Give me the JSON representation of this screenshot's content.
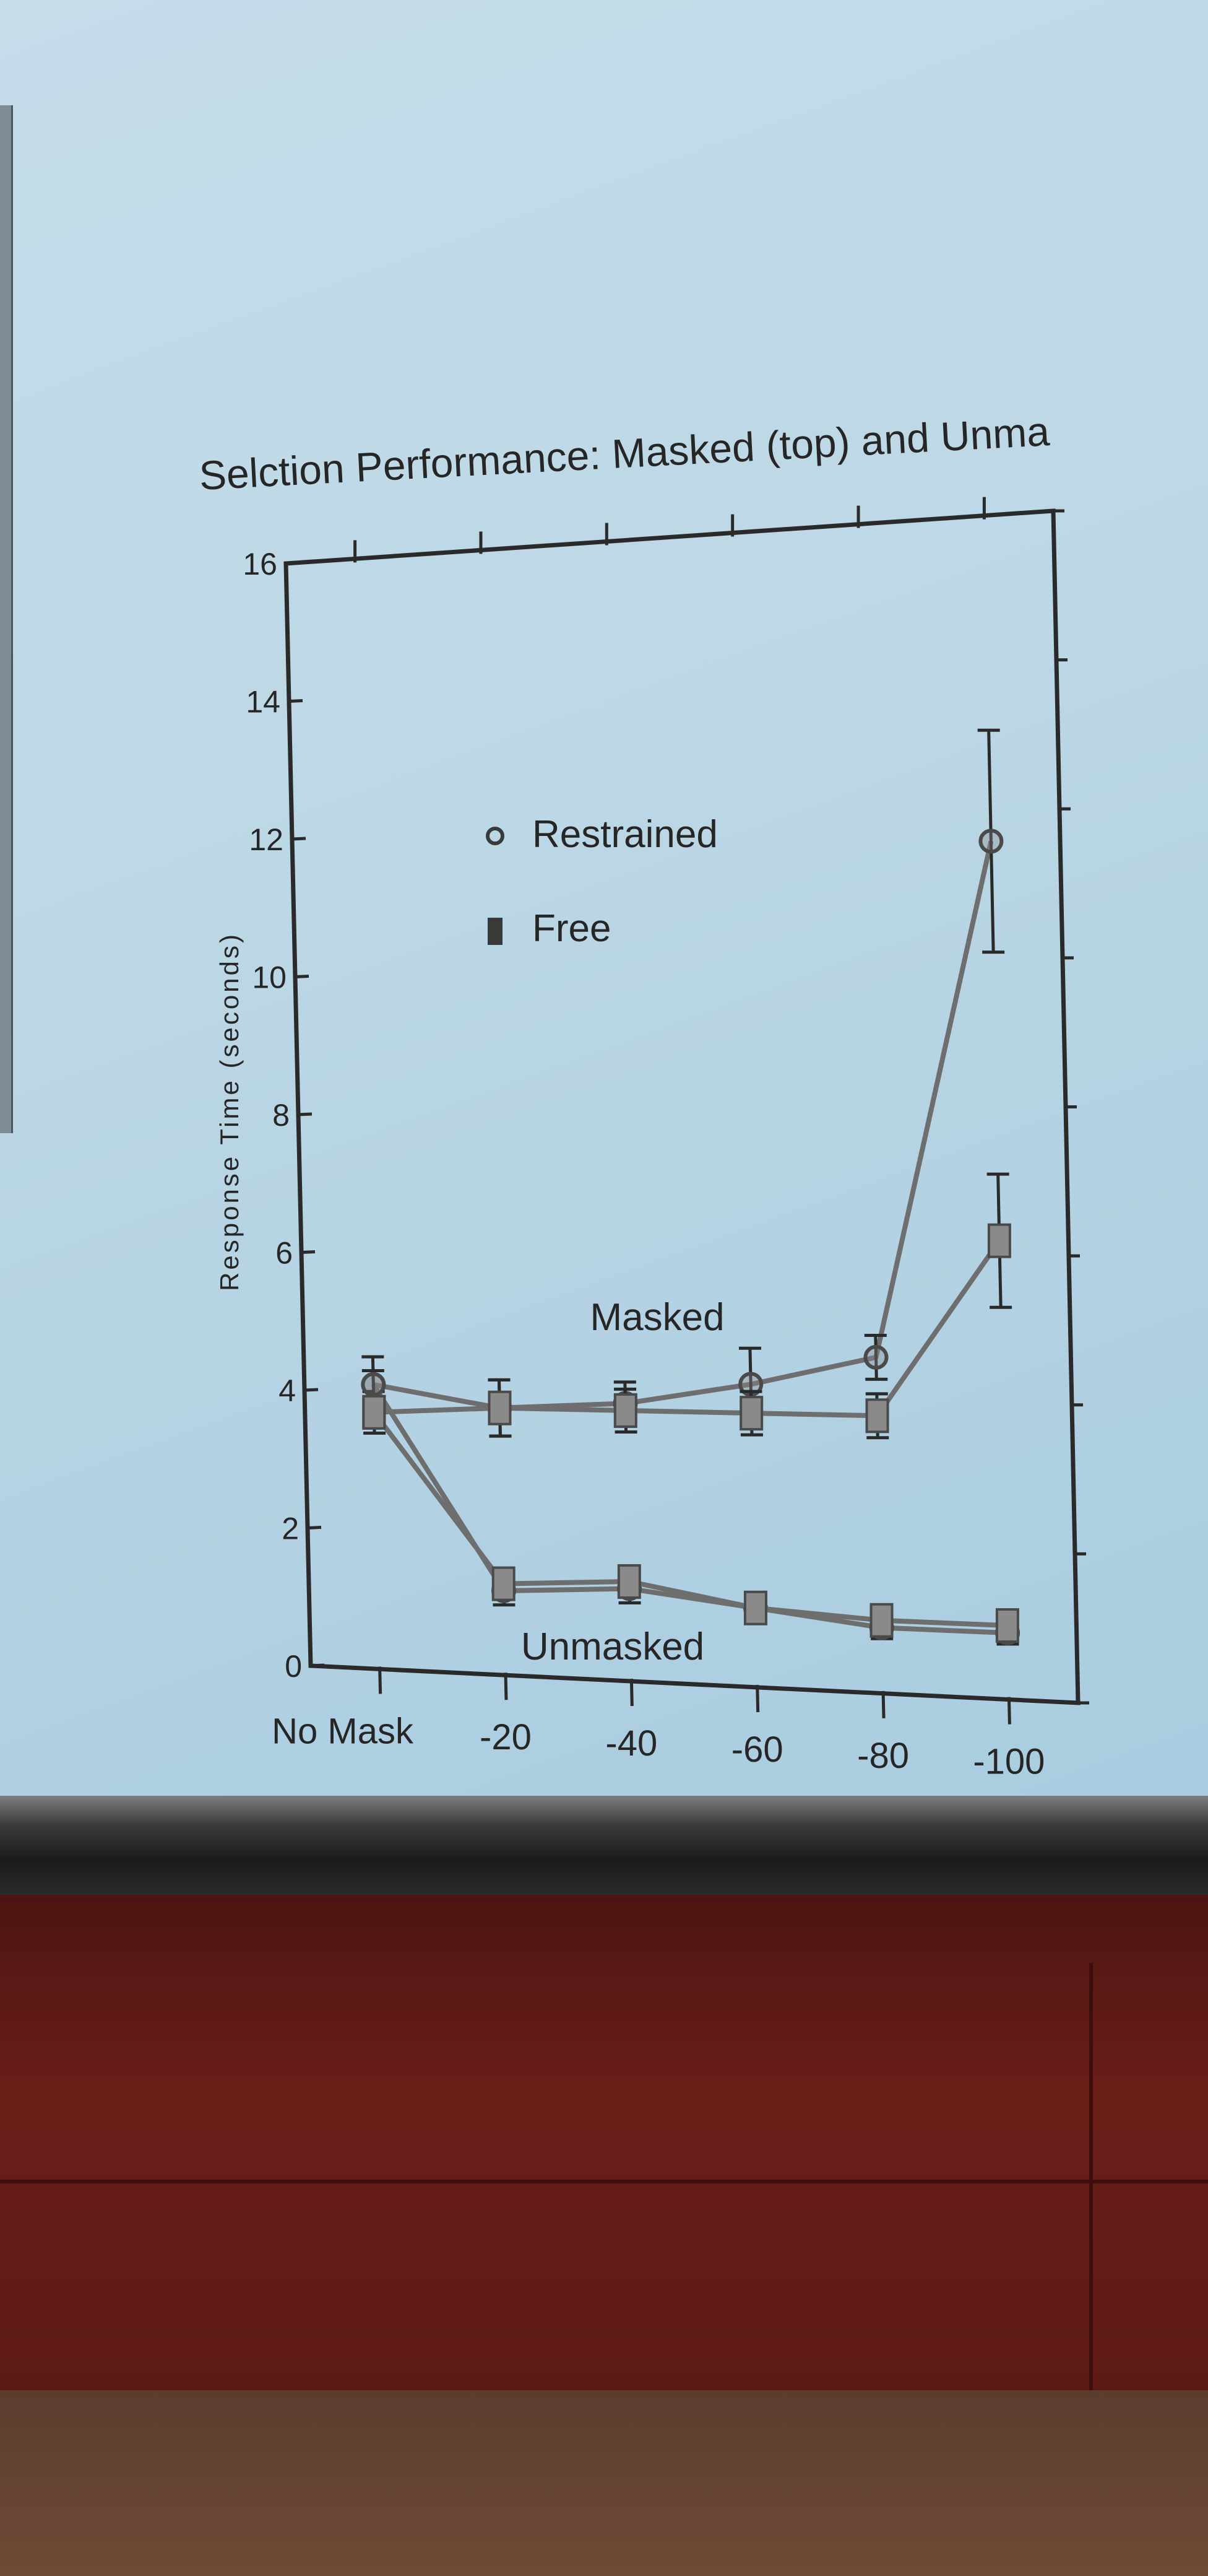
{
  "chart_data": {
    "type": "line",
    "title": "Selction Performance: Masked (top) and Unma",
    "xlabel": "",
    "ylabel": "Response Time (seconds)",
    "categories": [
      "No Mask",
      "-20",
      "-40",
      "-60",
      "-80",
      "-100"
    ],
    "ylim": [
      0,
      16
    ],
    "yticks": [
      0,
      2,
      4,
      6,
      8,
      10,
      12,
      14,
      16
    ],
    "legend": {
      "placement": "top-left",
      "entries": [
        {
          "label": "Restrained",
          "marker": "circle"
        },
        {
          "label": "Free",
          "marker": "square"
        }
      ]
    },
    "annotations": [
      "Masked",
      "Unmasked"
    ],
    "series": [
      {
        "name": "Restrained",
        "group": "Masked",
        "marker": "circle",
        "values": [
          4.1,
          3.8,
          3.9,
          4.2,
          4.6,
          11.6
        ],
        "error": [
          0.4,
          0.4,
          0.3,
          0.5,
          0.3,
          1.5
        ]
      },
      {
        "name": "Free",
        "group": "Masked",
        "marker": "square",
        "values": [
          3.7,
          3.8,
          3.8,
          3.8,
          3.8,
          6.2
        ],
        "error": [
          0.3,
          0.4,
          0.3,
          0.3,
          0.3,
          0.9
        ]
      },
      {
        "name": "Restrained",
        "group": "Unmasked",
        "marker": "circle",
        "values": [
          4.1,
          1.2,
          1.3,
          1.1,
          0.9,
          0.9
        ],
        "error": [
          0.2,
          0.2,
          0.2,
          0.2,
          0.15,
          0.15
        ]
      },
      {
        "name": "Free",
        "group": "Unmasked",
        "marker": "square",
        "values": [
          3.7,
          1.3,
          1.4,
          1.1,
          1.0,
          1.0
        ],
        "error": [
          0.2,
          0.2,
          0.2,
          0.2,
          0.15,
          0.15
        ]
      }
    ],
    "colors": {
      "line": "#6e6e6e",
      "marker_fill": "#8a8a8a",
      "axis": "#2a2a2a",
      "text": "#262626"
    },
    "grid": false
  }
}
